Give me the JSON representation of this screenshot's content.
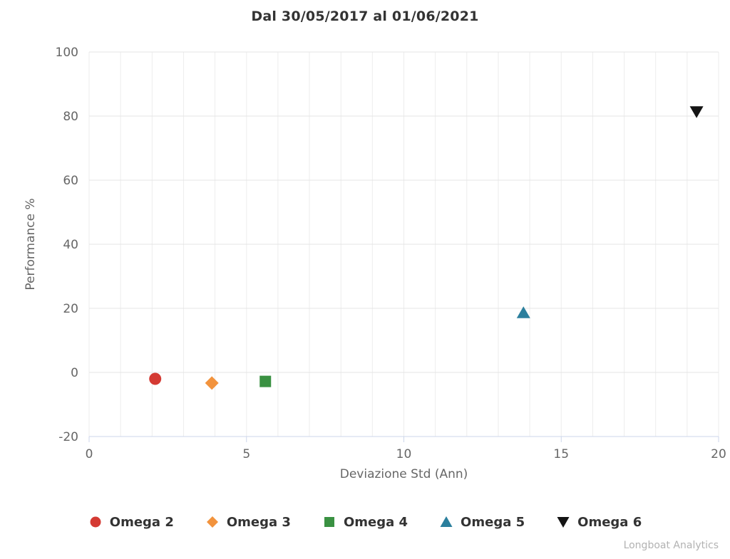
{
  "chart_data": {
    "type": "scatter",
    "title": "Dal 30/05/2017 al 01/06/2021",
    "xlabel": "Deviazione Std (Ann)",
    "ylabel": "Performance %",
    "xlim": [
      0,
      20
    ],
    "ylim": [
      -20,
      100
    ],
    "xticks": [
      0,
      5,
      10,
      15,
      20
    ],
    "yticks": [
      -20,
      0,
      20,
      40,
      60,
      80,
      100
    ],
    "minor_x_grid_step": 1,
    "grid": true,
    "legend_position": "bottom",
    "credit": "Longboat Analytics",
    "series": [
      {
        "name": "Omega 2",
        "marker": "circle",
        "color": "#d43a33",
        "points": [
          {
            "x": 2.1,
            "y": -2.0
          }
        ]
      },
      {
        "name": "Omega 3",
        "marker": "diamond",
        "color": "#f2933d",
        "points": [
          {
            "x": 3.9,
            "y": -3.3
          }
        ]
      },
      {
        "name": "Omega 4",
        "marker": "square",
        "color": "#3a9142",
        "points": [
          {
            "x": 5.6,
            "y": -2.8
          }
        ]
      },
      {
        "name": "Omega 5",
        "marker": "triangle-up",
        "color": "#2b7f9d",
        "points": [
          {
            "x": 13.8,
            "y": 18.6
          }
        ]
      },
      {
        "name": "Omega 6",
        "marker": "triangle-down",
        "color": "#141414",
        "points": [
          {
            "x": 19.3,
            "y": 81.4
          }
        ]
      }
    ],
    "style_colors": {
      "axis_line": "#ccd6eb",
      "minor_grid": "#ededed",
      "major_grid": "#e4e4e4",
      "tick_label": "#666666",
      "axis_title": "#666666",
      "title": "#333333",
      "legend_text": "#333333",
      "credit_text": "#b2b2b2"
    }
  }
}
